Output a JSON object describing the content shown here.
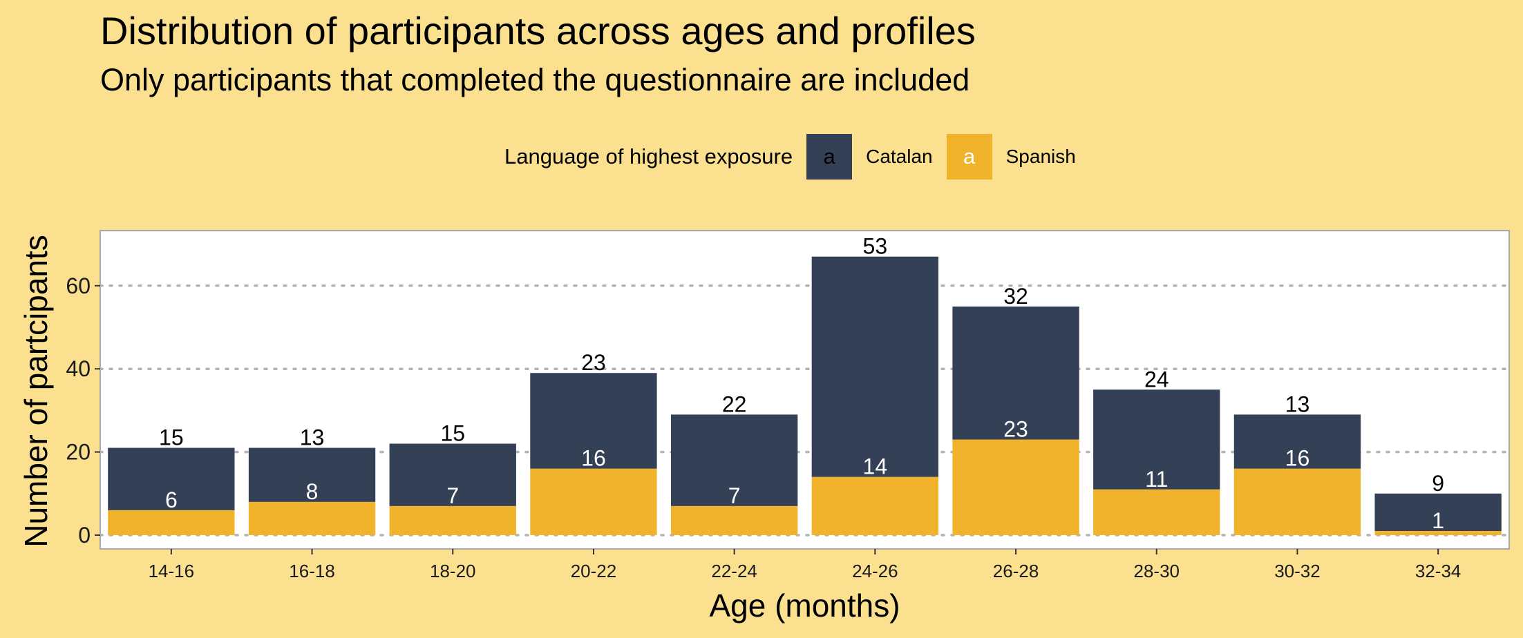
{
  "chart_data": {
    "type": "bar",
    "stacked": true,
    "title": "Distribution of participants across ages and profiles",
    "subtitle": "Only participants that completed the questionnaire are included",
    "xlabel": "Age (months)",
    "ylabel": "Number of partcipants",
    "ylim": [
      0,
      72
    ],
    "yticks": [
      0,
      20,
      40,
      60
    ],
    "grid": "horizontal-dotted",
    "legend_position": "top",
    "legend_title": "Language of highest exposure",
    "legend_key_glyph": "a",
    "categories": [
      "14-16",
      "16-18",
      "18-20",
      "20-22",
      "22-24",
      "24-26",
      "26-28",
      "28-30",
      "30-32",
      "32-34"
    ],
    "series": [
      {
        "name": "Spanish",
        "color": "#f1b32b",
        "label_color": "#ffffff",
        "values": [
          6,
          8,
          7,
          16,
          7,
          14,
          23,
          11,
          16,
          1
        ]
      },
      {
        "name": "Catalan",
        "color": "#344055",
        "label_color": "#000000",
        "values": [
          15,
          13,
          15,
          23,
          22,
          53,
          32,
          24,
          13,
          9
        ]
      }
    ]
  },
  "colors": {
    "background": "#fbe08f",
    "panel": "#ffffff",
    "grid": "#b3b3b3"
  }
}
